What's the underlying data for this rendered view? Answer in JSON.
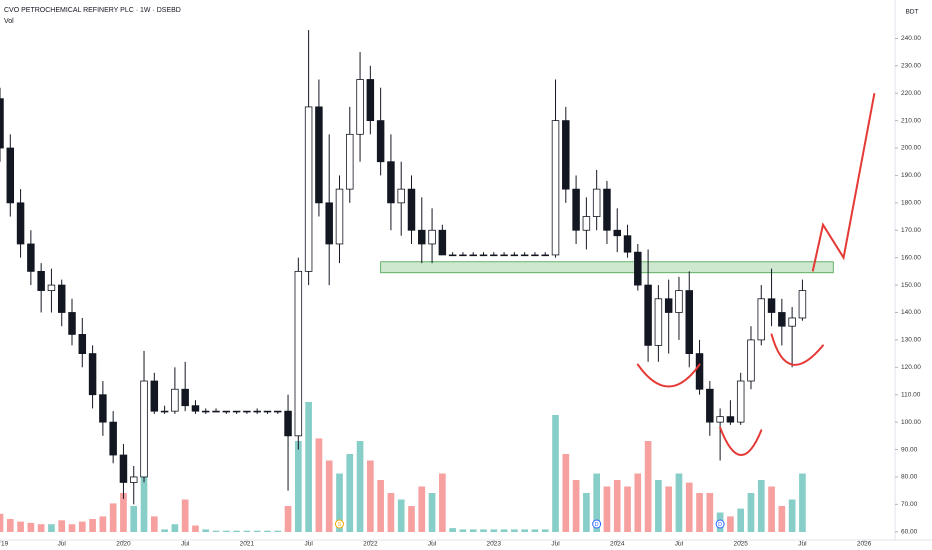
{
  "chart_data": {
    "type": "candlestick",
    "title": "CVO PETROCHEMICAL REFINERY PLC · 1W · DSEBD",
    "subtitle": "Vol",
    "currency_label": "BDT",
    "candle_color": "#131722",
    "volume_up_color": "#26a69a",
    "volume_down_color": "#ef5350",
    "grid": false,
    "x": [
      "2019-01",
      "2019-02",
      "2019-03",
      "2019-04",
      "2019-05",
      "2019-06",
      "2019-07",
      "2019-08",
      "2019-09",
      "2019-10",
      "2019-11",
      "2019-12",
      "2020-01",
      "2020-02",
      "2020-03",
      "2020-04",
      "2020-05",
      "2020-06",
      "2020-07",
      "2020-08",
      "2020-09",
      "2020-10",
      "2020-11",
      "2020-12",
      "2021-01",
      "2021-02",
      "2021-03",
      "2021-04",
      "2021-05",
      "2021-06",
      "2021-07",
      "2021-08",
      "2021-09",
      "2021-10",
      "2021-11",
      "2021-12",
      "2022-01",
      "2022-02",
      "2022-03",
      "2022-04",
      "2022-05",
      "2022-06",
      "2022-07",
      "2022-08",
      "2022-09",
      "2022-10",
      "2022-11",
      "2022-12",
      "2023-01",
      "2023-02",
      "2023-03",
      "2023-04",
      "2023-05",
      "2023-06",
      "2023-07",
      "2023-08",
      "2023-09",
      "2023-10",
      "2023-11",
      "2023-12",
      "2024-01",
      "2024-02",
      "2024-03",
      "2024-04",
      "2024-05",
      "2024-06",
      "2024-07",
      "2024-08",
      "2024-09",
      "2024-10",
      "2024-11",
      "2024-12",
      "2025-01",
      "2025-02",
      "2025-03",
      "2025-04",
      "2025-05",
      "2025-06",
      "2025-07"
    ],
    "open": [
      218,
      200,
      180,
      165,
      155,
      148,
      150,
      140,
      132,
      125,
      110,
      100,
      88,
      78,
      80,
      115,
      104,
      104,
      112,
      106,
      104,
      104,
      104,
      104,
      104,
      104,
      104,
      104,
      104,
      95,
      155,
      215,
      180,
      165,
      185,
      205,
      225,
      210,
      195,
      180,
      185,
      170,
      165,
      170,
      161,
      161,
      161,
      161,
      161,
      161,
      161,
      161,
      161,
      161,
      161,
      210,
      185,
      170,
      175,
      185,
      170,
      168,
      162,
      150,
      128,
      145,
      140,
      148,
      125,
      112,
      100,
      102,
      100,
      115,
      130,
      145,
      140,
      135,
      138
    ],
    "high": [
      222,
      205,
      185,
      170,
      158,
      156,
      152,
      145,
      138,
      128,
      115,
      104,
      92,
      84,
      126,
      118,
      106,
      120,
      122,
      108,
      105,
      105,
      104,
      104,
      104,
      105,
      104,
      104,
      110,
      160,
      243,
      225,
      205,
      190,
      215,
      235,
      230,
      222,
      205,
      195,
      190,
      182,
      178,
      172,
      162,
      162,
      162,
      162,
      162,
      162,
      162,
      162,
      162,
      162,
      225,
      215,
      190,
      182,
      192,
      188,
      178,
      172,
      165,
      163,
      150,
      152,
      153,
      155,
      130,
      115,
      105,
      108,
      118,
      135,
      150,
      156,
      145,
      142,
      152
    ],
    "low": [
      195,
      175,
      160,
      150,
      140,
      140,
      135,
      128,
      120,
      105,
      95,
      85,
      72,
      70,
      78,
      103,
      103,
      103,
      104,
      103,
      103,
      104,
      103,
      103,
      103,
      103,
      103,
      103,
      75,
      90,
      150,
      175,
      150,
      158,
      180,
      195,
      205,
      190,
      170,
      168,
      165,
      158,
      158,
      161,
      161,
      161,
      161,
      161,
      161,
      161,
      161,
      161,
      161,
      161,
      160,
      180,
      165,
      163,
      170,
      165,
      162,
      160,
      148,
      122,
      122,
      125,
      130,
      120,
      110,
      95,
      86,
      99,
      99,
      112,
      128,
      135,
      128,
      120,
      137
    ],
    "close": [
      200,
      180,
      165,
      155,
      148,
      150,
      140,
      132,
      125,
      110,
      100,
      88,
      78,
      80,
      115,
      104,
      104,
      112,
      106,
      104,
      104,
      104,
      104,
      104,
      104,
      104,
      104,
      104,
      95,
      155,
      215,
      180,
      165,
      185,
      205,
      225,
      210,
      195,
      180,
      185,
      170,
      165,
      170,
      161,
      161,
      161,
      161,
      161,
      161,
      161,
      161,
      161,
      161,
      161,
      210,
      185,
      170,
      175,
      185,
      170,
      168,
      162,
      150,
      128,
      145,
      140,
      148,
      125,
      112,
      100,
      102,
      100,
      115,
      130,
      145,
      140,
      135,
      138,
      148
    ],
    "volume": [
      14,
      10,
      8,
      7,
      6,
      6,
      9,
      6,
      8,
      10,
      12,
      22,
      30,
      20,
      55,
      12,
      2,
      6,
      25,
      5,
      2,
      1,
      1,
      1,
      1,
      1,
      1,
      1,
      20,
      70,
      100,
      72,
      55,
      45,
      60,
      70,
      55,
      40,
      30,
      25,
      20,
      35,
      30,
      45,
      3,
      2,
      2,
      2,
      2,
      2,
      2,
      2,
      2,
      2,
      90,
      60,
      40,
      30,
      45,
      35,
      40,
      35,
      45,
      70,
      40,
      35,
      45,
      38,
      30,
      30,
      15,
      12,
      18,
      30,
      40,
      35,
      20,
      25,
      45
    ],
    "xlim": [
      "2019-01",
      "2026-04"
    ],
    "xticks": [
      {
        "value": "2019-01",
        "label": "19"
      },
      {
        "value": "2019-07",
        "label": "Jul"
      },
      {
        "value": "2020-01",
        "label": "2020"
      },
      {
        "value": "2020-07",
        "label": "Jul"
      },
      {
        "value": "2021-01",
        "label": "2021"
      },
      {
        "value": "2021-07",
        "label": "Jul"
      },
      {
        "value": "2022-01",
        "label": "2022"
      },
      {
        "value": "2022-07",
        "label": "Jul"
      },
      {
        "value": "2023-01",
        "label": "2023"
      },
      {
        "value": "2023-07",
        "label": "Jul"
      },
      {
        "value": "2024-01",
        "label": "2024"
      },
      {
        "value": "2024-07",
        "label": "Jul"
      },
      {
        "value": "2025-01",
        "label": "2025"
      },
      {
        "value": "2025-07",
        "label": "Jul"
      },
      {
        "value": "2026-01",
        "label": "2026"
      }
    ],
    "ylim": [
      57,
      254
    ],
    "yticks": [
      {
        "value": 60,
        "label": "60.00"
      },
      {
        "value": 70,
        "label": "70.00"
      },
      {
        "value": 80,
        "label": "80.00"
      },
      {
        "value": 90,
        "label": "90.00"
      },
      {
        "value": 100,
        "label": "100.00"
      },
      {
        "value": 110,
        "label": "110.00"
      },
      {
        "value": 120,
        "label": "120.00"
      },
      {
        "value": 130,
        "label": "130.00"
      },
      {
        "value": 140,
        "label": "140.00"
      },
      {
        "value": 150,
        "label": "150.00"
      },
      {
        "value": 160,
        "label": "160.00"
      },
      {
        "value": 170,
        "label": "170.00"
      },
      {
        "value": 180,
        "label": "180.00"
      },
      {
        "value": 190,
        "label": "190.00"
      },
      {
        "value": 200,
        "label": "200.00"
      },
      {
        "value": 210,
        "label": "210.00"
      },
      {
        "value": 220,
        "label": "220.00"
      },
      {
        "value": 230,
        "label": "230.00"
      },
      {
        "value": 240,
        "label": "240.00"
      }
    ],
    "zone": {
      "x": [
        "2022-02",
        "2025-10"
      ],
      "low": 154.5,
      "high": 158.5,
      "color": "#a5d6a7"
    },
    "arcs": [
      {
        "x": [
          "2024-03",
          "2024-06",
          "2024-09"
        ],
        "y": [
          121,
          113,
          121
        ],
        "color": "#e53935"
      },
      {
        "x": [
          "2024-11",
          "2025-01",
          "2025-03"
        ],
        "y": [
          98,
          88,
          97
        ],
        "color": "#e53935"
      },
      {
        "x": [
          "2025-04",
          "2025-06",
          "2025-09"
        ],
        "y": [
          132,
          121,
          128
        ],
        "color": "#e53935"
      }
    ],
    "projection": {
      "x": [
        "2025-08",
        "2025-09",
        "2025-11",
        "2026-02"
      ],
      "y": [
        155,
        172,
        160,
        220
      ],
      "color": "#e53935"
    },
    "events": [
      {
        "x": "2021-10",
        "label": "S",
        "color": "#f7a600"
      },
      {
        "x": "2023-11",
        "label": "D",
        "color": "#2962ff"
      },
      {
        "x": "2024-11",
        "label": "D",
        "color": "#2962ff"
      }
    ]
  }
}
